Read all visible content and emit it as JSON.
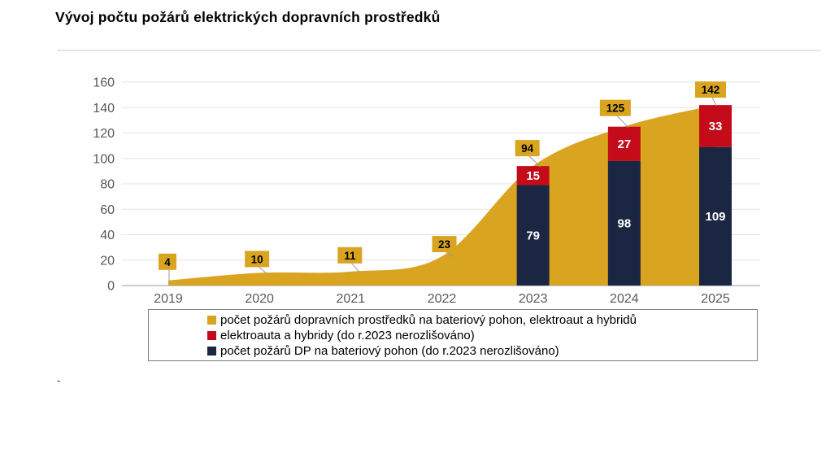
{
  "title": "Vývoj počtu požárů elektrických dopravních prostředků",
  "footnote": "-",
  "colors": {
    "gold": "#D9A420",
    "red": "#C40B1A",
    "navy": "#1B2642",
    "axis_text": "#595959",
    "gridline": "#E4E4E4",
    "baseline": "#C6CBD4",
    "leader": "#9B9B9B",
    "divider": "#DFE6EF",
    "legend_border": "#7F7F7F",
    "label_text_dark": "#000000",
    "label_text_light": "#FFFFFF"
  },
  "chart_data": {
    "type": "combo: smoothed area + stacked bars",
    "title": "Vývoj počtu požárů elektrických dopravních prostředků",
    "categories": [
      "2019",
      "2020",
      "2021",
      "2022",
      "2023",
      "2024",
      "2025"
    ],
    "series": [
      {
        "name": "počet požárů dopravních prostředků na bateriový pohon, elektroaut a hybridů",
        "type": "area",
        "color": "#D9A420",
        "values": [
          4,
          10,
          11,
          23,
          94,
          125,
          142
        ],
        "labels_shown": [
          "4",
          "10",
          "11",
          "23",
          "94",
          "125",
          "142"
        ]
      },
      {
        "name": "elektroauta a hybridy (do r.2023 nerozlišováno)",
        "type": "bar-stack-top",
        "color": "#C40B1A",
        "values": [
          null,
          null,
          null,
          null,
          15,
          27,
          33
        ]
      },
      {
        "name": "počet požárů DP na bateriový pohon (do r.2023 nerozlišováno)",
        "type": "bar-stack-bottom",
        "color": "#1B2642",
        "values": [
          null,
          null,
          null,
          null,
          79,
          98,
          109
        ]
      }
    ],
    "xlabel": "",
    "ylabel": "",
    "ylim": [
      0,
      160
    ],
    "yticks": [
      0,
      20,
      40,
      60,
      80,
      100,
      120,
      140,
      160
    ],
    "grid": true,
    "legend_position": "bottom"
  }
}
